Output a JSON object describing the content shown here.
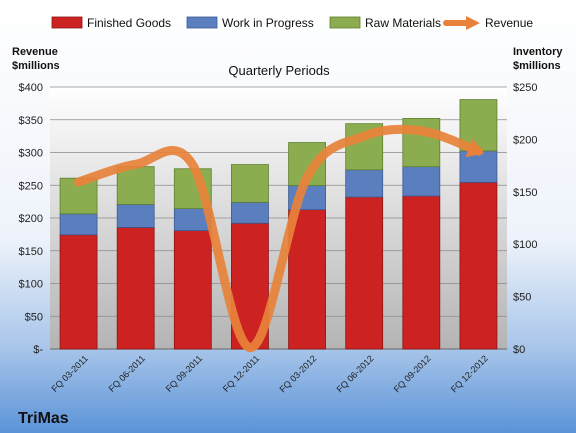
{
  "chart_data": {
    "type": "bar",
    "stacked": true,
    "title": "Quarterly Periods",
    "brand": "TriMas",
    "categories": [
      "FQ 03-2011",
      "FQ 06-2011",
      "FQ 09-2011",
      "FQ 12-2011",
      "FQ 03-2012",
      "FQ 06-2012",
      "FQ 09-2012",
      "FQ 12-2012"
    ],
    "left_axis": {
      "label_line1": "Revenue",
      "label_line2": "$millions",
      "range": [
        0,
        400
      ],
      "ticks": [
        0,
        50,
        100,
        150,
        200,
        250,
        300,
        350,
        400
      ],
      "tick_labels": [
        "$-",
        "$50",
        "$100",
        "$150",
        "$200",
        "$250",
        "$300",
        "$350",
        "$400"
      ]
    },
    "right_axis": {
      "label_line1": "Inventory",
      "label_line2": "$millions",
      "range": [
        0,
        250
      ],
      "ticks": [
        0,
        50,
        100,
        150,
        200,
        250
      ],
      "tick_labels": [
        "$0",
        "$50",
        "$100",
        "$150",
        "$200",
        "$250"
      ]
    },
    "series": [
      {
        "name": "Finished Goods",
        "axis": "right",
        "color": "#cc2222",
        "values": [
          109,
          116,
          113,
          120,
          133,
          145,
          146,
          159
        ]
      },
      {
        "name": "Work in Progress",
        "axis": "right",
        "color": "#5b7fbe",
        "values": [
          20,
          22,
          21,
          20,
          23,
          26,
          28,
          30
        ]
      },
      {
        "name": "Raw Materials",
        "axis": "right",
        "color": "#8bad4f",
        "values": [
          34,
          36,
          38,
          36,
          41,
          44,
          46,
          49
        ]
      },
      {
        "name": "Revenue",
        "type": "line",
        "axis": "left",
        "color": "#e8823a",
        "values": [
          255,
          282,
          281,
          2,
          262,
          325,
          333,
          302
        ]
      }
    ],
    "grid": true,
    "legend": "top"
  }
}
